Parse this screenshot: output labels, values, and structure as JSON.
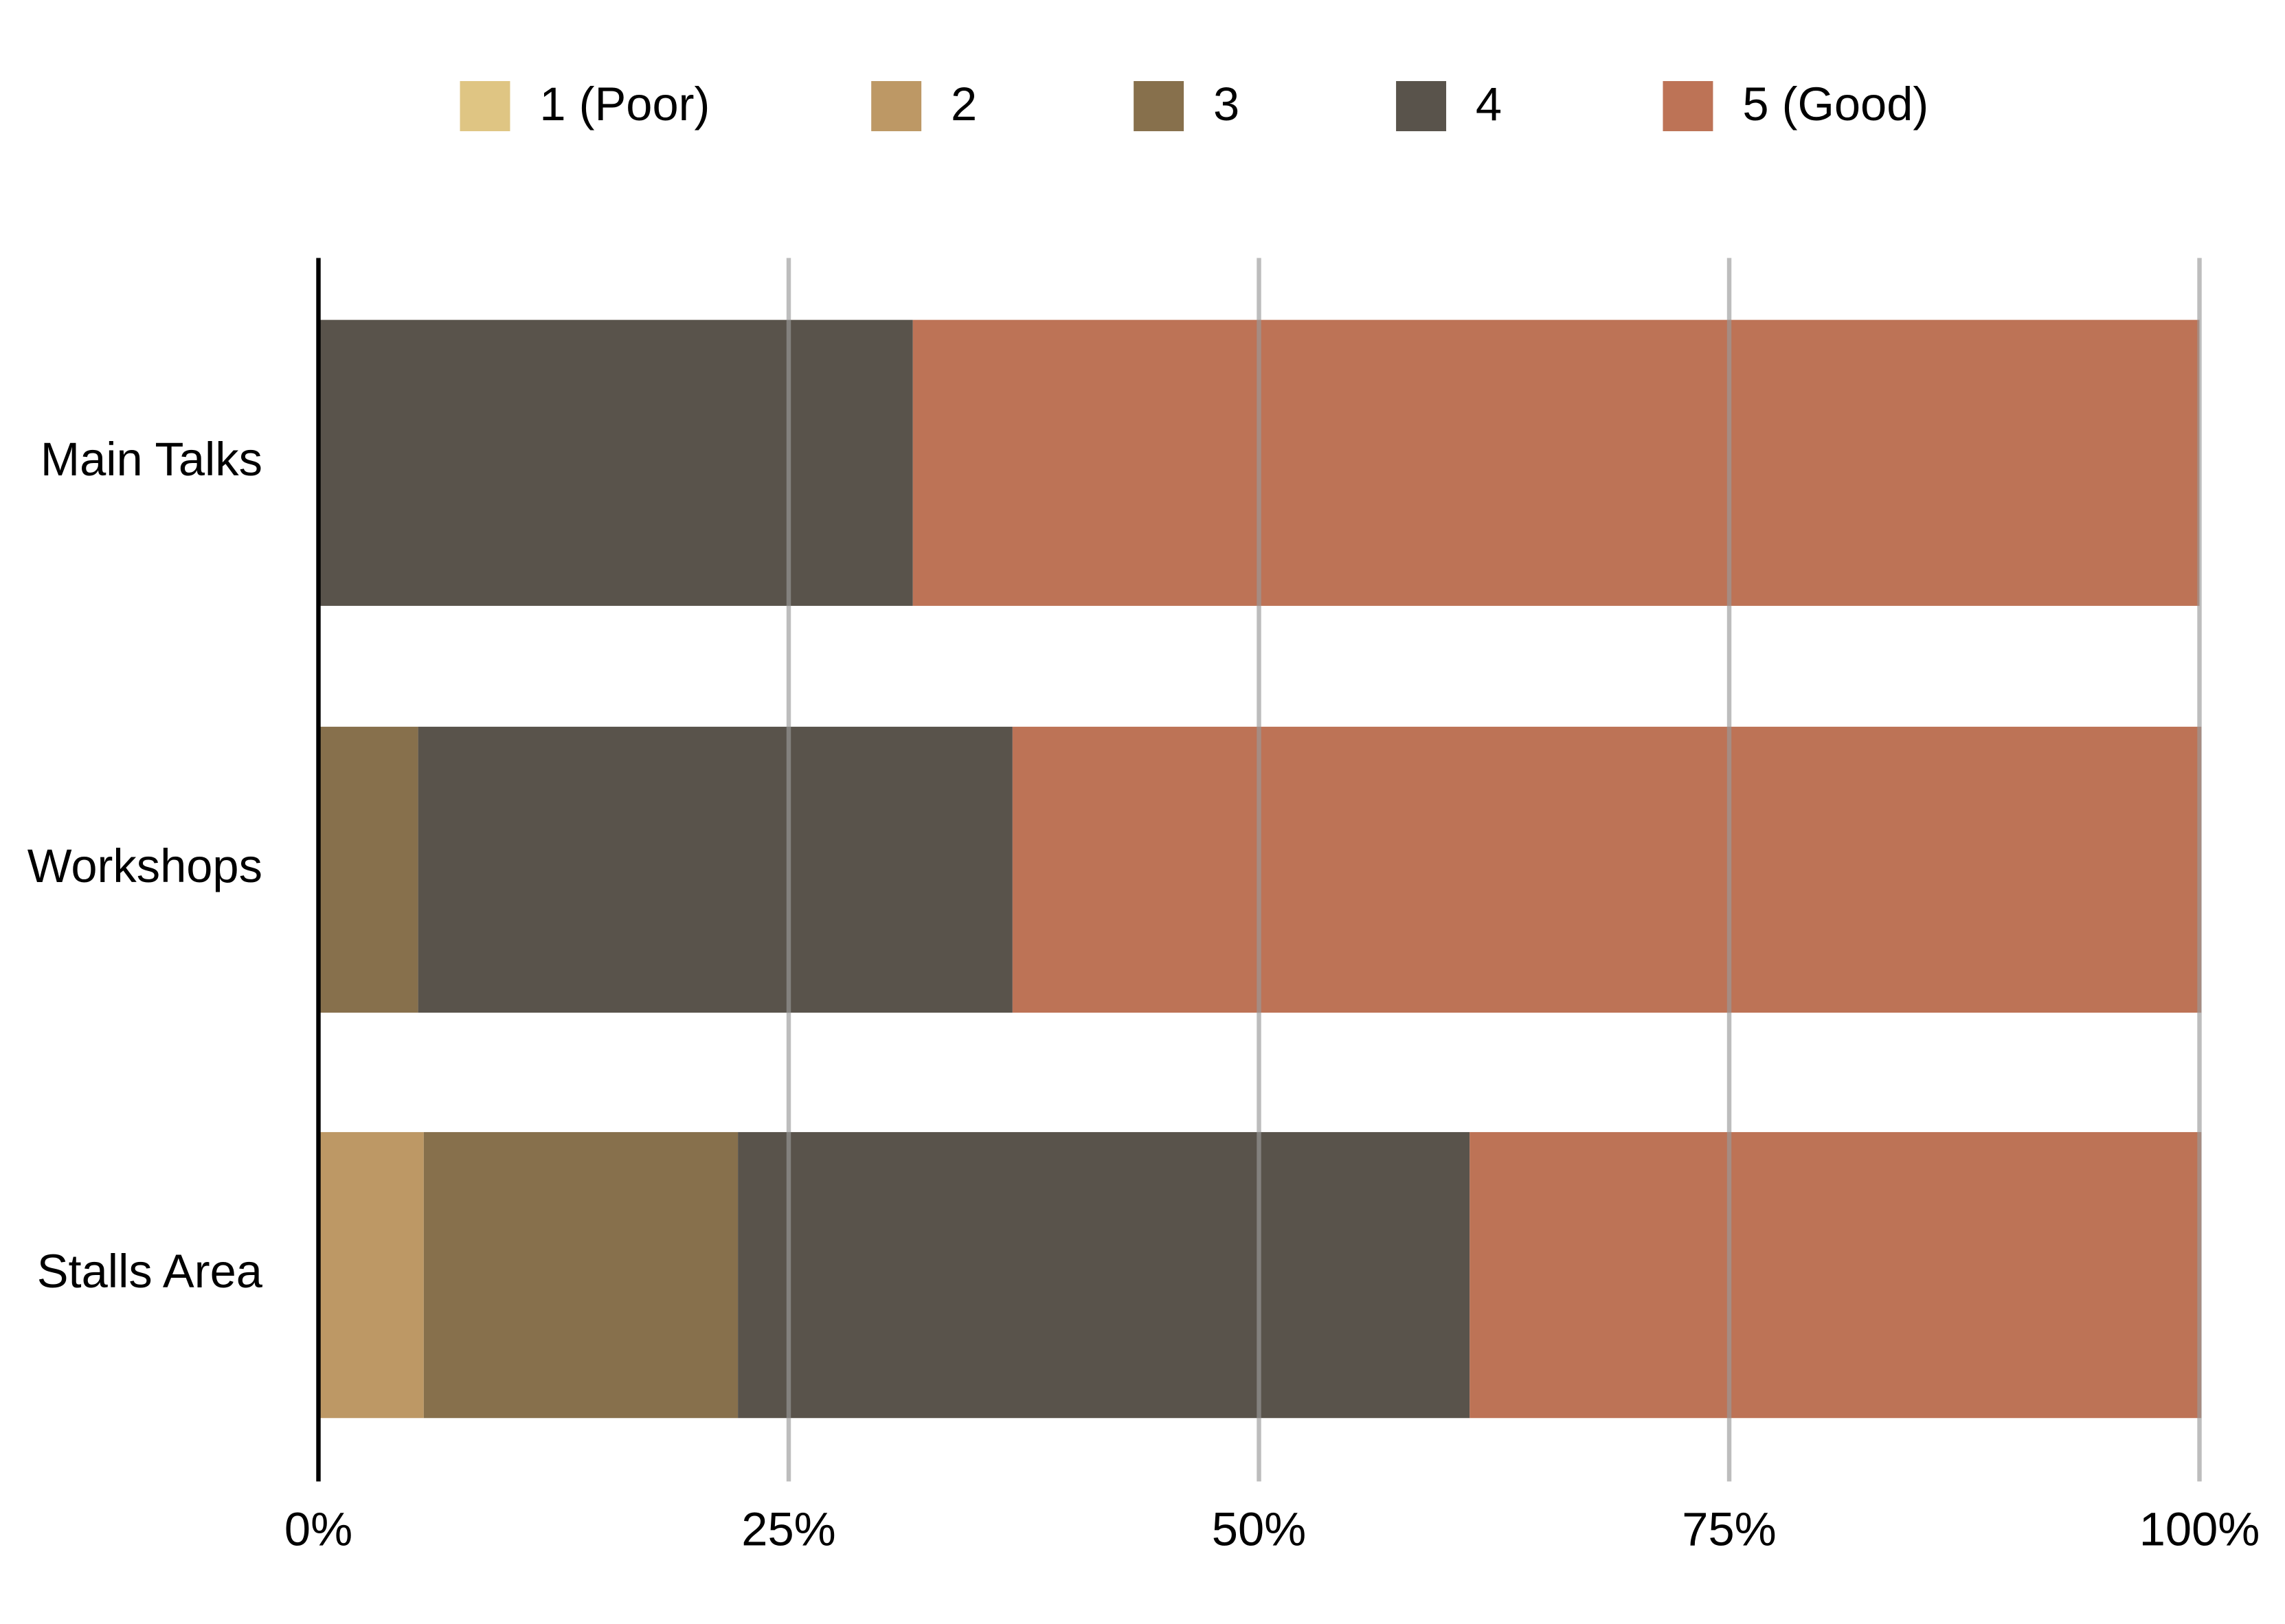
{
  "chart_data": {
    "type": "stacked-barh",
    "categories": [
      "Main Talks",
      "Workshops",
      "Stalls Area"
    ],
    "series": [
      {
        "name": "1 (Poor)",
        "color": "#dfc583",
        "values": [
          0,
          0,
          0
        ]
      },
      {
        "name": "2",
        "color": "#bd9865",
        "values": [
          0,
          0,
          5.6
        ]
      },
      {
        "name": "3",
        "color": "#87704c",
        "values": [
          0,
          5.3,
          16.7
        ]
      },
      {
        "name": "4",
        "color": "#59534b",
        "values": [
          31.6,
          31.6,
          38.9
        ]
      },
      {
        "name": "5 (Good)",
        "color": "#bd7356",
        "values": [
          68.4,
          63.2,
          38.9
        ]
      }
    ],
    "xlim": [
      0,
      100
    ],
    "xticks": [
      {
        "value": 0,
        "label": "0%"
      },
      {
        "value": 25,
        "label": "25%"
      },
      {
        "value": 50,
        "label": "50%"
      },
      {
        "value": 75,
        "label": "75%"
      },
      {
        "value": 100,
        "label": "100%"
      }
    ],
    "grid": true,
    "legend": "top"
  }
}
